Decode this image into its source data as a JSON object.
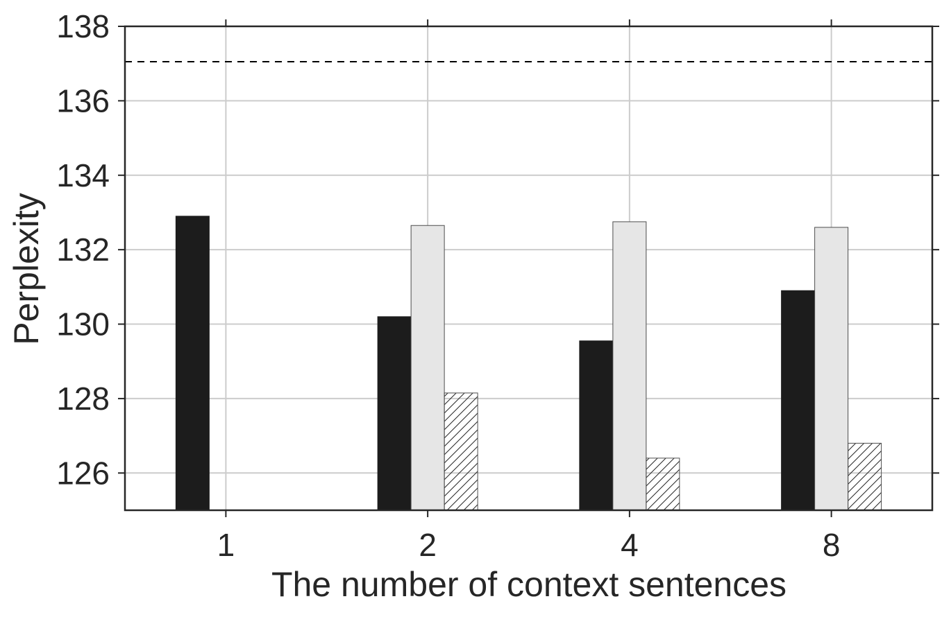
{
  "chart_data": {
    "type": "bar",
    "categories": [
      "1",
      "2",
      "4",
      "8"
    ],
    "series": [
      {
        "values": [
          132.9,
          130.2,
          129.55,
          130.9
        ],
        "color": "#1c1c1c",
        "pattern": "solid"
      },
      {
        "values": [
          null,
          132.65,
          132.75,
          132.6
        ],
        "color": "#e6e6e6",
        "pattern": "solid"
      },
      {
        "values": [
          null,
          128.15,
          126.4,
          126.8
        ],
        "color": "#ffffff",
        "pattern": "diagonal-hatch"
      }
    ],
    "reference_line": {
      "value": 137.05,
      "style": "dashed",
      "color": "#000000"
    },
    "xlabel": "The number of context sentences",
    "ylabel": "Perplexity",
    "ylim": [
      125,
      138
    ],
    "yticks": [
      126,
      128,
      130,
      132,
      134,
      136,
      138
    ],
    "grid": true,
    "legend": "none"
  }
}
